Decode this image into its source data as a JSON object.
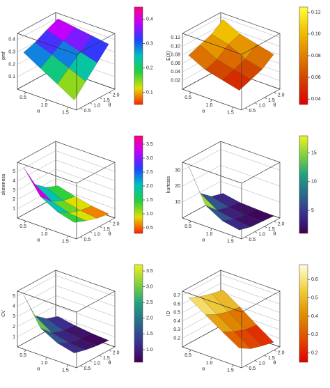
{
  "chart_data": [
    {
      "type": "surface",
      "zlabel": "pmf",
      "xlabel": "α",
      "ylabel": "θ",
      "x": [
        0.4,
        0.8,
        1.2,
        1.6
      ],
      "y": [
        0.4,
        1.0,
        1.6,
        2.2
      ],
      "z": [
        [
          0.3,
          0.33,
          0.38,
          0.42
        ],
        [
          0.22,
          0.28,
          0.34,
          0.4
        ],
        [
          0.14,
          0.22,
          0.3,
          0.38
        ],
        [
          0.06,
          0.16,
          0.26,
          0.36
        ]
      ],
      "xlim": [
        0.3,
        1.7
      ],
      "ylim": [
        0.3,
        2.3
      ],
      "zlim": [
        0,
        0.45
      ],
      "xticks": [
        0.5,
        {
          "value": 1,
          "label": "1.0"
        },
        1.5
      ],
      "yticks": [
        0.5,
        {
          "value": 1,
          "label": "1.0"
        },
        1.5,
        {
          "value": 2,
          "label": "2.0"
        }
      ],
      "zticks": [
        0.1,
        0.2,
        0.3,
        0.4
      ],
      "clim": [
        0.05,
        0.45
      ],
      "cticks": [
        0.1,
        0.2,
        0.3,
        0.4
      ],
      "colorscale": [
        "#ff2000",
        "#e0e000",
        "#20d040",
        "#00c0c0",
        "#2040ff",
        "#c000ff",
        "#ff0080"
      ]
    },
    {
      "type": "surface",
      "zlabel": "E(X)",
      "xlabel": "α",
      "ylabel": "θ",
      "x": [
        0.4,
        0.8,
        1.2,
        1.6
      ],
      "y": [
        0.4,
        1.0,
        1.6,
        2.2
      ],
      "z": [
        [
          0.08,
          0.09,
          0.1,
          0.12
        ],
        [
          0.06,
          0.07,
          0.09,
          0.1
        ],
        [
          0.05,
          0.06,
          0.07,
          0.09
        ],
        [
          0.04,
          0.05,
          0.06,
          0.08
        ]
      ],
      "xlim": [
        0.3,
        1.7
      ],
      "ylim": [
        0.3,
        2.3
      ],
      "zlim": [
        0,
        0.13
      ],
      "xticks": [
        0.5,
        {
          "value": 1,
          "label": "1.0"
        },
        1.5
      ],
      "yticks": [
        0.5,
        {
          "value": 1,
          "label": "1.0"
        },
        1.5,
        {
          "value": 2,
          "label": "2.0"
        }
      ],
      "zticks": [
        0.02,
        0.04,
        0.06,
        0.08,
        {
          "value": 0.1,
          "label": "0.10"
        },
        0.12
      ],
      "clim": [
        0.035,
        0.125
      ],
      "cticks": [
        0.04,
        0.06,
        0.08,
        {
          "value": 0.1,
          "label": "0.10"
        },
        0.12
      ],
      "colorscale": [
        "#e00000",
        "#d04000",
        "#e08000",
        "#f0c000",
        "#ffff40"
      ]
    },
    {
      "type": "surface",
      "zlabel": "skewness",
      "xlabel": "α",
      "ylabel": "θ",
      "x": [
        0.4,
        0.8,
        1.2,
        1.6
      ],
      "y": [
        0.4,
        1.0,
        1.6,
        2.2
      ],
      "z": [
        [
          5.5,
          3.0,
          2.0,
          1.5
        ],
        [
          3.0,
          1.8,
          1.2,
          1.0
        ],
        [
          2.0,
          1.2,
          0.8,
          0.6
        ],
        [
          1.5,
          1.0,
          0.6,
          0.4
        ]
      ],
      "xlim": [
        0.3,
        1.7
      ],
      "ylim": [
        0.3,
        2.3
      ],
      "zlim": [
        0,
        6
      ],
      "xticks": [
        0.5,
        {
          "value": 1,
          "label": "1.0"
        },
        1.5
      ],
      "yticks": [
        0.5,
        {
          "value": 1,
          "label": "1.0"
        },
        1.5,
        {
          "value": 2,
          "label": "2.0"
        }
      ],
      "zticks": [
        1,
        2,
        3,
        4,
        5
      ],
      "clim": [
        0.3,
        3.8
      ],
      "cticks": [
        0.5,
        {
          "value": 1,
          "label": "1.0"
        },
        1.5,
        {
          "value": 2,
          "label": "2.0"
        },
        2.5,
        {
          "value": 3,
          "label": "3.0"
        },
        3.5
      ],
      "colorscale": [
        "#ff2000",
        "#e0e000",
        "#20d040",
        "#00c0c0",
        "#2040ff",
        "#c000ff",
        "#ff0080"
      ]
    },
    {
      "type": "surface",
      "zlabel": "kurtosis",
      "xlabel": "α",
      "ylabel": "θ",
      "x": [
        0.4,
        0.8,
        1.2,
        1.6
      ],
      "y": [
        0.4,
        1.0,
        1.6,
        2.2
      ],
      "z": [
        [
          33,
          12,
          6,
          4
        ],
        [
          12,
          5,
          3,
          2
        ],
        [
          6,
          3,
          2,
          1.5
        ],
        [
          4,
          2,
          1.5,
          1
        ]
      ],
      "xlim": [
        0.3,
        1.7
      ],
      "ylim": [
        0.3,
        2.3
      ],
      "zlim": [
        0,
        35
      ],
      "xticks": [
        0.5,
        {
          "value": 1,
          "label": "1.0"
        },
        1.5
      ],
      "yticks": [
        0.5,
        {
          "value": 1,
          "label": "1.0"
        },
        1.5,
        {
          "value": 2,
          "label": "2.0"
        }
      ],
      "zticks": [
        10,
        20,
        30
      ],
      "clim": [
        1,
        18
      ],
      "cticks": [
        5,
        10,
        15
      ],
      "colorscale": [
        "#400050",
        "#3a3090",
        "#2a6a8a",
        "#20a080",
        "#80d040",
        "#f0f020"
      ]
    },
    {
      "type": "surface",
      "zlabel": "CV",
      "xlabel": "α",
      "ylabel": "θ",
      "x": [
        0.4,
        0.8,
        1.2,
        1.6
      ],
      "y": [
        0.4,
        1.0,
        1.6,
        2.2
      ],
      "z": [
        [
          5.2,
          2.5,
          1.6,
          1.2
        ],
        [
          2.5,
          1.4,
          1.0,
          0.9
        ],
        [
          1.6,
          1.0,
          0.8,
          0.7
        ],
        [
          1.2,
          0.9,
          0.7,
          0.6
        ]
      ],
      "xlim": [
        0.3,
        1.7
      ],
      "ylim": [
        0.3,
        2.3
      ],
      "zlim": [
        0,
        5.5
      ],
      "xticks": [
        0.5,
        {
          "value": 1,
          "label": "1.0"
        },
        1.5
      ],
      "yticks": [
        0.5,
        {
          "value": 1,
          "label": "1.0"
        },
        1.5,
        {
          "value": 2,
          "label": "2.0"
        }
      ],
      "zticks": [
        1,
        2,
        3,
        4,
        5
      ],
      "clim": [
        0.6,
        3.7
      ],
      "cticks": [
        {
          "value": 1,
          "label": "1.0"
        },
        1.5,
        {
          "value": 2,
          "label": "2.0"
        },
        2.5,
        {
          "value": 3,
          "label": "3.0"
        },
        3.5
      ],
      "colorscale": [
        "#400050",
        "#3a3090",
        "#2a6a8a",
        "#20a080",
        "#80d040",
        "#f0f020"
      ]
    },
    {
      "type": "surface",
      "zlabel": "ID",
      "xlabel": "α",
      "ylabel": "θ",
      "x": [
        0.4,
        0.8,
        1.2,
        1.6
      ],
      "y": [
        0.4,
        1.0,
        1.6,
        2.2
      ],
      "z": [
        [
          0.68,
          0.62,
          0.58,
          0.55
        ],
        [
          0.55,
          0.48,
          0.44,
          0.42
        ],
        [
          0.42,
          0.35,
          0.3,
          0.28
        ],
        [
          0.3,
          0.22,
          0.18,
          0.15
        ]
      ],
      "xlim": [
        0.3,
        1.7
      ],
      "ylim": [
        0.3,
        2.3
      ],
      "zlim": [
        0.1,
        0.75
      ],
      "xticks": [
        0.5,
        {
          "value": 1,
          "label": "1.0"
        },
        1.5
      ],
      "yticks": [
        0.5,
        {
          "value": 1,
          "label": "1.0"
        },
        1.5,
        {
          "value": 2,
          "label": "2.0"
        }
      ],
      "zticks": [
        0.2,
        0.3,
        0.4,
        0.5,
        0.6,
        0.7
      ],
      "clim": [
        0.15,
        0.68
      ],
      "cticks": [
        0.2,
        0.3,
        0.4,
        0.5,
        0.6
      ],
      "colorscale": [
        "#e00000",
        "#e05000",
        "#e09000",
        "#f0d040",
        "#ffffe0"
      ]
    }
  ]
}
